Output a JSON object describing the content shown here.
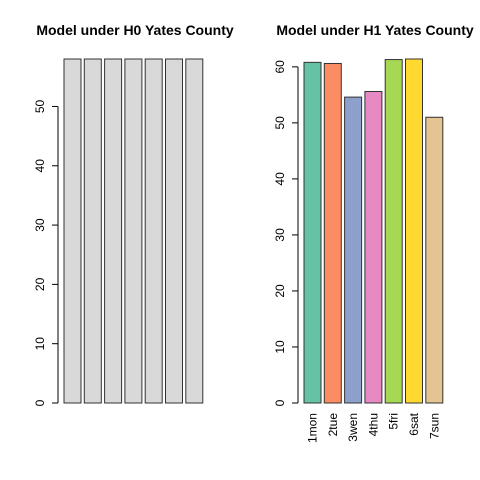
{
  "chart_data": [
    {
      "type": "bar",
      "title": "Model under H0 Yates County",
      "categories": [
        "1mon",
        "2tue",
        "3wen",
        "4thu",
        "5fri",
        "6sat",
        "7sun"
      ],
      "show_category_labels": false,
      "values": [
        58,
        58,
        58,
        58,
        58,
        58,
        58
      ],
      "ylim": [
        0,
        58
      ],
      "yticks": [
        0,
        10,
        20,
        30,
        40,
        50
      ],
      "colors": [
        "#d9d9d9",
        "#d9d9d9",
        "#d9d9d9",
        "#d9d9d9",
        "#d9d9d9",
        "#d9d9d9",
        "#d9d9d9"
      ],
      "grid": false
    },
    {
      "type": "bar",
      "title": "Model under H1 Yates County",
      "categories": [
        "1mon",
        "2tue",
        "3wen",
        "4thu",
        "5fri",
        "6sat",
        "7sun"
      ],
      "show_category_labels": true,
      "values": [
        60.8,
        60.6,
        54.6,
        55.6,
        61.3,
        61.4,
        51.0
      ],
      "ylim": [
        0,
        61.4
      ],
      "yticks": [
        0,
        10,
        20,
        30,
        40,
        50,
        60
      ],
      "colors": [
        "#66c2a5",
        "#fc8d62",
        "#8da0cb",
        "#e78ac3",
        "#a6d854",
        "#ffd92f",
        "#e5c494"
      ],
      "grid": false
    }
  ]
}
